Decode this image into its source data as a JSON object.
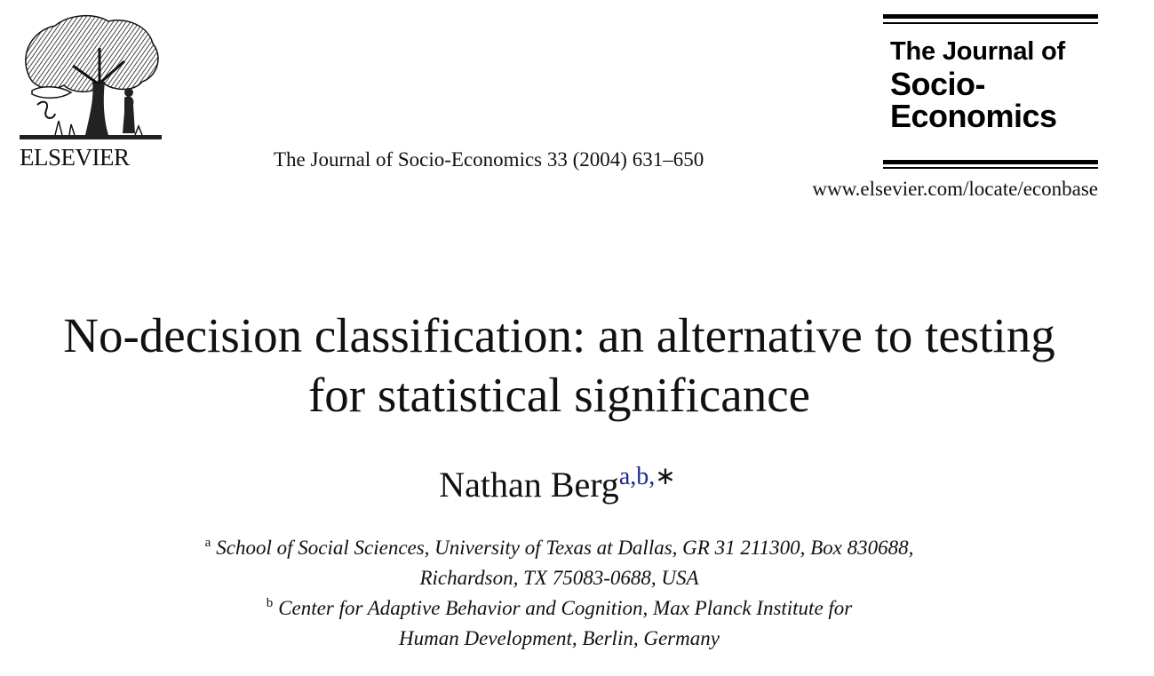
{
  "header": {
    "publisher": "ELSEVIER",
    "citation": "The Journal of Socio-Economics 33 (2004) 631–650",
    "journal_logo": {
      "line1": "The Journal of",
      "line2": "Socio-",
      "line3": "Economics"
    },
    "url": "www.elsevier.com/locate/econbase"
  },
  "article": {
    "title_line1": "No-decision classification: an alternative to testing",
    "title_line2": "for statistical significance",
    "author": "Nathan Berg",
    "author_marks": {
      "aff_a": "a",
      "sep1": ",",
      "aff_b": "b",
      "sep2": ",",
      "corresponding": "∗"
    }
  },
  "affiliations": [
    {
      "marker": "a",
      "line1": "School of Social Sciences, University of Texas at Dallas, GR 31 211300, Box 830688,",
      "line2": "Richardson, TX 75083-0688, USA"
    },
    {
      "marker": "b",
      "line1": "Center for Adaptive Behavior and Cognition, Max Planck Institute for",
      "line2": "Human Development, Berlin, Germany"
    }
  ],
  "colors": {
    "link": "#1a2a8c",
    "text": "#111111",
    "background": "#ffffff"
  },
  "icons": {
    "publisher_logo": "elsevier-tree-logo"
  }
}
